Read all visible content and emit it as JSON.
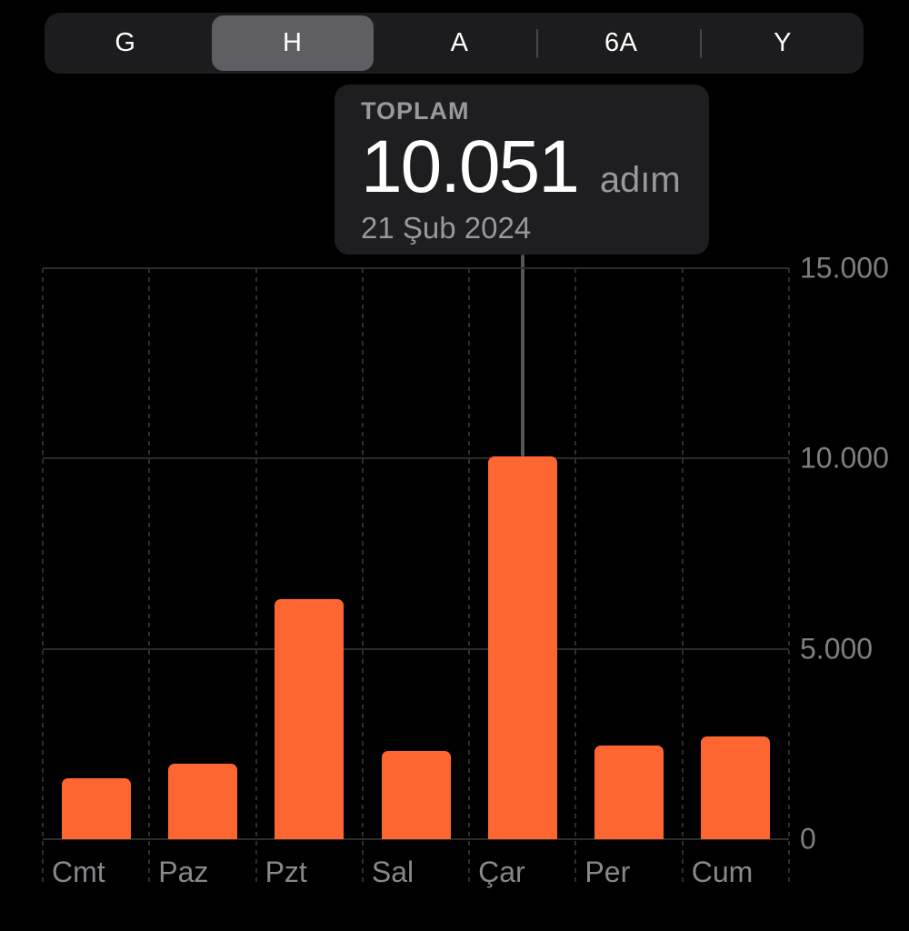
{
  "segmented_control": {
    "options": [
      {
        "label": "G",
        "selected": false
      },
      {
        "label": "H",
        "selected": true
      },
      {
        "label": "A",
        "selected": false
      },
      {
        "label": "6A",
        "selected": false
      },
      {
        "label": "Y",
        "selected": false
      }
    ]
  },
  "tooltip": {
    "title": "TOPLAM",
    "value": "10.051",
    "unit": "adım",
    "date": "21 Şub 2024"
  },
  "chart_data": {
    "type": "bar",
    "title": "",
    "xlabel": "",
    "ylabel": "",
    "categories": [
      "Cmt",
      "Paz",
      "Pzt",
      "Sal",
      "Çar",
      "Per",
      "Cum"
    ],
    "values": [
      1600,
      1980,
      6300,
      2320,
      10051,
      2460,
      2700
    ],
    "selected_index": 4,
    "selected_total": 10051,
    "ylim": [
      0,
      15000
    ],
    "yticks": [
      {
        "label": "0",
        "value": 0
      },
      {
        "label": "5.000",
        "value": 5000
      },
      {
        "label": "10.000",
        "value": 10000
      },
      {
        "label": "15.000",
        "value": 15000
      }
    ],
    "grid": "horizontal solid, vertical dashed",
    "legend": "none",
    "bar_color": "#fd6631"
  },
  "colors": {
    "background": "#000000",
    "bar": "#fd6631",
    "control_background": "#1c1c1e",
    "selected_segment": "#5f5f63",
    "tooltip_background": "#1e1e20",
    "secondary_text": "#98989d",
    "axis_text": "#7e7e83",
    "gridline": "#2c2c2e"
  }
}
